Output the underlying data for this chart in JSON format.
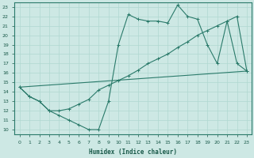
{
  "xlabel": "Humidex (Indice chaleur)",
  "ylabel": "",
  "xlim": [
    -0.5,
    23.5
  ],
  "ylim": [
    9.5,
    23.5
  ],
  "yticks": [
    10,
    11,
    12,
    13,
    14,
    15,
    16,
    17,
    18,
    19,
    20,
    21,
    22,
    23
  ],
  "xticks": [
    0,
    1,
    2,
    3,
    4,
    5,
    6,
    7,
    8,
    9,
    10,
    11,
    12,
    13,
    14,
    15,
    16,
    17,
    18,
    19,
    20,
    21,
    22,
    23
  ],
  "background_color": "#cde8e4",
  "grid_color": "#b0d8d0",
  "line_color": "#2a7a6a",
  "series1_x": [
    0,
    1,
    2,
    3,
    4,
    5,
    6,
    7,
    8,
    9,
    10,
    11,
    12,
    13,
    14,
    15,
    16,
    17,
    18,
    19,
    20,
    21,
    22,
    23
  ],
  "series1_y": [
    14.5,
    13.5,
    13.0,
    12.0,
    11.5,
    11.0,
    10.5,
    10.0,
    10.0,
    13.0,
    19.0,
    22.2,
    21.7,
    21.5,
    21.5,
    21.3,
    23.2,
    22.0,
    21.7,
    19.0,
    17.0,
    21.5,
    17.0,
    16.2
  ],
  "series2_x": [
    0,
    1,
    2,
    3,
    4,
    5,
    6,
    7,
    8,
    9,
    10,
    11,
    12,
    13,
    14,
    15,
    16,
    17,
    18,
    19,
    20,
    21,
    22,
    23
  ],
  "series2_y": [
    14.5,
    13.5,
    13.0,
    12.0,
    12.0,
    12.2,
    12.7,
    13.2,
    14.2,
    14.7,
    15.2,
    15.7,
    16.3,
    17.0,
    17.5,
    18.0,
    18.7,
    19.3,
    20.0,
    20.5,
    21.0,
    21.5,
    22.0,
    16.2
  ],
  "series3_x": [
    0,
    23
  ],
  "series3_y": [
    14.5,
    16.2
  ],
  "marker": "+"
}
